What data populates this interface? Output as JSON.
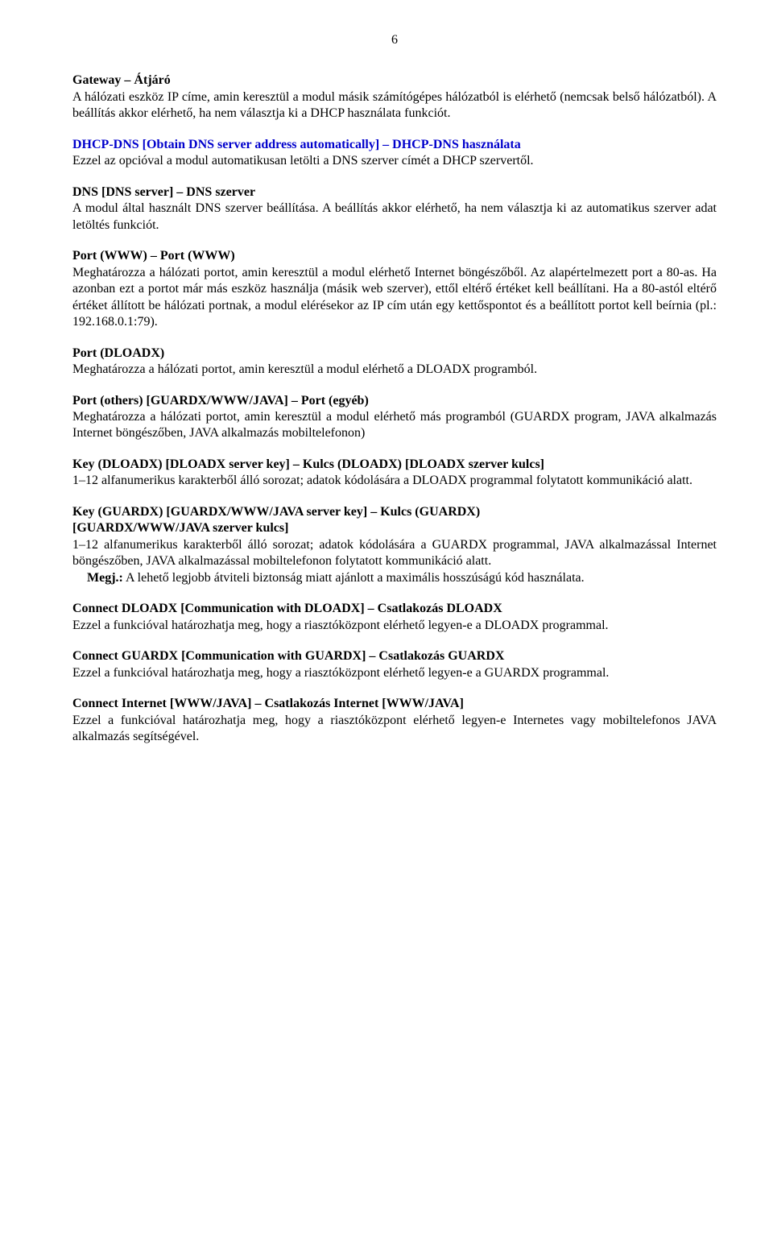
{
  "page_number": "6",
  "sections": {
    "gateway": {
      "heading": "Gateway – Átjáró",
      "body": "A hálózati eszköz IP címe, amin keresztül a modul másik számítógépes hálózatból is elérhető (nemcsak belső hálózatból). A beállítás akkor elérhető, ha nem választja ki a DHCP használata funkciót."
    },
    "dhcp_dns": {
      "heading": "DHCP-DNS [Obtain DNS server address automatically] – DHCP-DNS használata",
      "body": "Ezzel az opcióval a modul automatikusan letölti a DNS szerver címét a DHCP szervertől."
    },
    "dns_server": {
      "heading": "DNS [DNS server] – DNS szerver",
      "body": "A modul által használt DNS szerver beállítása. A beállítás akkor elérhető, ha nem választja ki az automatikus szerver adat letöltés funkciót."
    },
    "port_www": {
      "heading": "Port (WWW) – Port (WWW)",
      "body": "Meghatározza a hálózati portot, amin keresztül a modul elérhető Internet böngészőből. Az alapértelmezett port a 80-as. Ha azonban ezt a portot már más eszköz használja (másik web szerver), ettől eltérő értéket kell beállítani. Ha a 80-astól eltérő értéket állított be hálózati portnak, a modul elérésekor az IP cím után egy kettőspontot és a beállított portot kell beírnia (pl.: 192.168.0.1:79)."
    },
    "port_dloadx": {
      "heading": "Port (DLOADX)",
      "body": "Meghatározza a hálózati portot, amin keresztül a modul elérhető a DLOADX programból."
    },
    "port_others": {
      "heading": "Port (others) [GUARDX/WWW/JAVA] – Port (egyéb)",
      "body": "Meghatározza a hálózati portot, amin keresztül a modul elérhető más programból (GUARDX program, JAVA alkalmazás Internet böngészőben, JAVA alkalmazás mobiltelefonon)"
    },
    "key_dloadx": {
      "heading": "Key (DLOADX) [DLOADX server key] – Kulcs (DLOADX) [DLOADX szerver kulcs]",
      "body": "1–12 alfanumerikus karakterből álló sorozat; adatok kódolására a DLOADX programmal folytatott kommunikáció alatt."
    },
    "key_guardx": {
      "heading1": "Key (GUARDX) [GUARDX/WWW/JAVA server key] – Kulcs (GUARDX)",
      "heading2": "[GUARDX/WWW/JAVA szerver kulcs]",
      "body": "1–12 alfanumerikus karakterből álló sorozat; adatok kódolására a GUARDX programmal, JAVA alkalmazással Internet böngészőben, JAVA alkalmazással mobiltelefonon folytatott kommunikáció alatt.",
      "note_label": "Megj.:",
      "note_body": "A lehető legjobb átviteli biztonság miatt ajánlott a maximális hosszúságú kód használata."
    },
    "connect_dloadx": {
      "heading": "Connect DLOADX [Communication with DLOADX] – Csatlakozás DLOADX",
      "body": "Ezzel a funkcióval határozhatja meg, hogy a riasztóközpont elérhető legyen-e a DLOADX programmal."
    },
    "connect_guardx": {
      "heading": "Connect GUARDX [Communication with GUARDX] – Csatlakozás GUARDX",
      "body": "Ezzel a funkcióval határozhatja meg, hogy a riasztóközpont elérhető legyen-e a GUARDX programmal."
    },
    "connect_internet": {
      "heading": "Connect Internet [WWW/JAVA] – Csatlakozás Internet [WWW/JAVA]",
      "body": "Ezzel a funkcióval határozhatja meg, hogy a riasztóközpont elérhető legyen-e Internetes vagy mobiltelefonos JAVA alkalmazás segítségével."
    }
  }
}
